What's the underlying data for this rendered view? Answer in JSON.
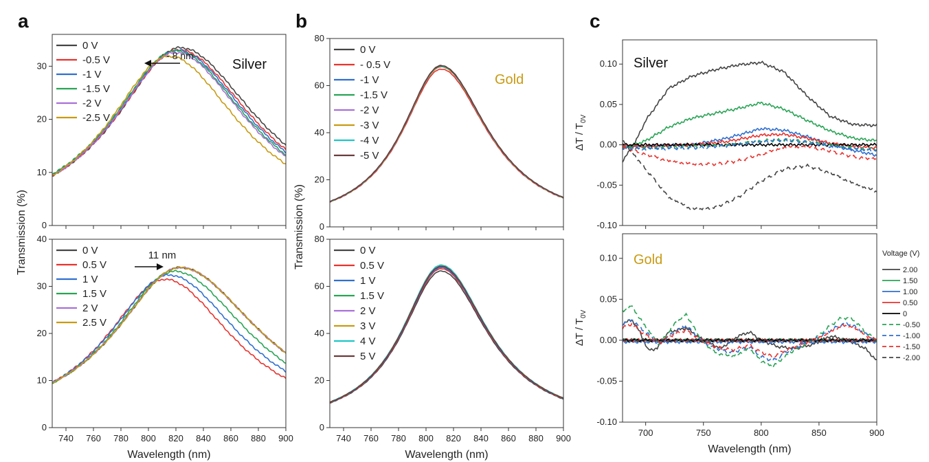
{
  "figure": {
    "panel_letters": [
      "a",
      "b",
      "c"
    ]
  },
  "chart_data": [
    {
      "id": "a_top",
      "panel": "a",
      "type": "line",
      "annotation": "Silver",
      "arrow_label": "- 8 nm",
      "xlim": [
        730,
        900
      ],
      "ylim": [
        0,
        36
      ],
      "xticks": [
        740,
        760,
        780,
        800,
        820,
        840,
        860,
        880,
        900
      ],
      "yticks": [
        0,
        10,
        20,
        30
      ],
      "xlabel": "",
      "ylabel": "Transmission (%)",
      "legend_placement": "top-left",
      "series": [
        {
          "name": "0 V",
          "color": "#444444",
          "peak": 823,
          "amp": 33.5,
          "wl": 58,
          "wr": 70
        },
        {
          "name": "-0.5 V",
          "color": "#e8322d",
          "peak": 822,
          "amp": 33.1,
          "wl": 58,
          "wr": 68
        },
        {
          "name": "-1 V",
          "color": "#2f6fd0",
          "peak": 821,
          "amp": 33.0,
          "wl": 58,
          "wr": 67
        },
        {
          "name": "-1.5 V",
          "color": "#27a454",
          "peak": 820,
          "amp": 32.9,
          "wl": 58,
          "wr": 66
        },
        {
          "name": "-2 V",
          "color": "#a870d8",
          "peak": 820,
          "amp": 32.6,
          "wl": 57,
          "wr": 65
        },
        {
          "name": "-2.5 V",
          "color": "#c89a12",
          "peak": 815,
          "amp": 31.9,
          "wl": 55,
          "wr": 64
        }
      ]
    },
    {
      "id": "a_bot",
      "panel": "a",
      "type": "line",
      "annotation": "",
      "arrow_label": "11 nm",
      "xlim": [
        730,
        900
      ],
      "ylim": [
        0,
        40
      ],
      "xticks": [
        740,
        760,
        780,
        800,
        820,
        840,
        860,
        880,
        900
      ],
      "yticks": [
        0,
        10,
        20,
        30,
        40
      ],
      "xlabel": "Wavelength (nm)",
      "ylabel": "",
      "legend_placement": "top-left",
      "series": [
        {
          "name": "0 V",
          "color": "#444444",
          "peak": 823,
          "amp": 34.0,
          "wl": 58,
          "wr": 72
        },
        {
          "name": "0.5 V",
          "color": "#e8322d",
          "peak": 812,
          "amp": 31.5,
          "wl": 54,
          "wr": 62
        },
        {
          "name": "1 V",
          "color": "#2f6fd0",
          "peak": 815,
          "amp": 32.4,
          "wl": 55,
          "wr": 65
        },
        {
          "name": "1.5 V",
          "color": "#27a454",
          "peak": 819,
          "amp": 33.2,
          "wl": 56,
          "wr": 68
        },
        {
          "name": "2 V",
          "color": "#a870d8",
          "peak": 823,
          "amp": 34.0,
          "wl": 58,
          "wr": 72
        },
        {
          "name": "2.5 V",
          "color": "#c89a12",
          "peak": 823,
          "amp": 34.0,
          "wl": 58,
          "wr": 72
        }
      ]
    },
    {
      "id": "b_top",
      "panel": "b",
      "type": "line",
      "annotation": "Gold",
      "arrow_label": "",
      "xlim": [
        730,
        900
      ],
      "ylim": [
        0,
        80
      ],
      "xticks": [
        740,
        760,
        780,
        800,
        820,
        840,
        860,
        880,
        900
      ],
      "yticks": [
        0,
        20,
        40,
        60,
        80
      ],
      "xlabel": "",
      "ylabel": "Transmission (%)",
      "legend_placement": "top-left",
      "series": [
        {
          "name": "0 V",
          "color": "#444444",
          "peak": 811,
          "amp": 68.5,
          "wl": 35,
          "wr": 42
        },
        {
          "name": "- 0.5 V",
          "color": "#e8322d",
          "peak": 811,
          "amp": 67.0,
          "wl": 35,
          "wr": 42
        },
        {
          "name": "-1 V",
          "color": "#2f6fd0",
          "peak": 811,
          "amp": 68.0,
          "wl": 35,
          "wr": 42
        },
        {
          "name": "-1.5 V",
          "color": "#27a454",
          "peak": 811,
          "amp": 68.0,
          "wl": 35,
          "wr": 42
        },
        {
          "name": "-2 V",
          "color": "#a870d8",
          "peak": 811,
          "amp": 68.0,
          "wl": 35,
          "wr": 42
        },
        {
          "name": "-3 V",
          "color": "#c89a12",
          "peak": 811,
          "amp": 68.0,
          "wl": 35,
          "wr": 42
        },
        {
          "name": "-4 V",
          "color": "#1ec6c6",
          "peak": 811,
          "amp": 68.2,
          "wl": 35,
          "wr": 42
        },
        {
          "name": "-5 V",
          "color": "#6b3a3a",
          "peak": 811,
          "amp": 68.4,
          "wl": 35,
          "wr": 42
        }
      ]
    },
    {
      "id": "b_bot",
      "panel": "b",
      "type": "line",
      "annotation": "",
      "arrow_label": "",
      "xlim": [
        730,
        900
      ],
      "ylim": [
        0,
        80
      ],
      "xticks": [
        740,
        760,
        780,
        800,
        820,
        840,
        860,
        880,
        900
      ],
      "yticks": [
        0,
        20,
        40,
        60,
        80
      ],
      "xlabel": "Wavelength (nm)",
      "ylabel": "",
      "legend_placement": "top-left",
      "series": [
        {
          "name": "0 V",
          "color": "#444444",
          "peak": 811,
          "amp": 66.5,
          "wl": 35,
          "wr": 42
        },
        {
          "name": "0.5 V",
          "color": "#e8322d",
          "peak": 811,
          "amp": 67.5,
          "wl": 35,
          "wr": 42
        },
        {
          "name": "1 V",
          "color": "#2f6fd0",
          "peak": 811,
          "amp": 68.0,
          "wl": 35,
          "wr": 42
        },
        {
          "name": "1.5 V",
          "color": "#27a454",
          "peak": 811,
          "amp": 68.5,
          "wl": 35,
          "wr": 42
        },
        {
          "name": "2 V",
          "color": "#a870d8",
          "peak": 811,
          "amp": 68.5,
          "wl": 35,
          "wr": 42
        },
        {
          "name": "3 V",
          "color": "#c89a12",
          "peak": 811,
          "amp": 69.0,
          "wl": 35,
          "wr": 42
        },
        {
          "name": "4 V",
          "color": "#1ec6c6",
          "peak": 811,
          "amp": 69.0,
          "wl": 35,
          "wr": 42
        },
        {
          "name": "5 V",
          "color": "#6b3a3a",
          "peak": 811,
          "amp": 68.5,
          "wl": 35,
          "wr": 42
        }
      ]
    },
    {
      "id": "c_top",
      "panel": "c",
      "type": "line",
      "annotation": "Silver",
      "arrow_label": "",
      "xlim": [
        680,
        900
      ],
      "ylim": [
        -0.1,
        0.13
      ],
      "xticks": [
        700,
        750,
        800,
        850,
        900
      ],
      "yticks": [
        -0.1,
        -0.05,
        0.0,
        0.05,
        0.1
      ],
      "xlabel": "",
      "ylabel": "ΔT / T0V",
      "legend_placement": "outside-right",
      "legend_title": "Voltage (V)",
      "series": [
        {
          "name": "2.00",
          "color": "#444444",
          "dash": false,
          "x": [
            680,
            690,
            700,
            720,
            740,
            760,
            780,
            800,
            820,
            840,
            860,
            880,
            900
          ],
          "y": [
            -0.02,
            0.0,
            0.03,
            0.07,
            0.085,
            0.093,
            0.099,
            0.102,
            0.09,
            0.06,
            0.035,
            0.025,
            0.024
          ]
        },
        {
          "name": "1.50",
          "color": "#27a454",
          "dash": false,
          "x": [
            680,
            700,
            720,
            740,
            760,
            780,
            800,
            820,
            840,
            860,
            880,
            900
          ],
          "y": [
            -0.005,
            0.005,
            0.022,
            0.033,
            0.039,
            0.045,
            0.052,
            0.044,
            0.03,
            0.017,
            0.008,
            0.005
          ]
        },
        {
          "name": "1.00",
          "color": "#2f6fd0",
          "dash": false,
          "x": [
            680,
            700,
            740,
            770,
            800,
            820,
            840,
            860,
            880,
            900
          ],
          "y": [
            -0.002,
            -0.002,
            0.0,
            0.008,
            0.02,
            0.018,
            0.01,
            0.0,
            -0.007,
            -0.013
          ]
        },
        {
          "name": "0.50",
          "color": "#e8322d",
          "dash": false,
          "x": [
            680,
            700,
            740,
            770,
            800,
            820,
            840,
            860,
            880,
            900
          ],
          "y": [
            -0.001,
            -0.002,
            0.0,
            0.004,
            0.012,
            0.013,
            0.008,
            0.002,
            -0.002,
            -0.004
          ]
        },
        {
          "name": "0",
          "color": "#000000",
          "dash": false,
          "x": [
            680,
            900
          ],
          "y": [
            0.0,
            0.0
          ]
        },
        {
          "name": "-0.50",
          "color": "#27a454",
          "dash": true,
          "x": [
            680,
            700,
            740,
            770,
            800,
            820,
            840,
            860,
            880,
            900
          ],
          "y": [
            -0.003,
            -0.004,
            -0.002,
            0.0,
            0.005,
            0.006,
            0.004,
            0.0,
            -0.004,
            -0.006
          ]
        },
        {
          "name": "-1.00",
          "color": "#2f6fd0",
          "dash": true,
          "x": [
            680,
            700,
            740,
            770,
            800,
            820,
            840,
            860,
            880,
            900
          ],
          "y": [
            -0.004,
            -0.005,
            -0.004,
            -0.001,
            0.004,
            0.006,
            0.003,
            -0.002,
            -0.005,
            -0.007
          ]
        },
        {
          "name": "-1.50",
          "color": "#e8322d",
          "dash": true,
          "x": [
            680,
            700,
            720,
            740,
            760,
            780,
            800,
            820,
            840,
            860,
            880,
            900
          ],
          "y": [
            -0.003,
            -0.012,
            -0.02,
            -0.024,
            -0.024,
            -0.02,
            -0.012,
            -0.003,
            -0.002,
            -0.008,
            -0.015,
            -0.018
          ]
        },
        {
          "name": "-2.00",
          "color": "#444444",
          "dash": true,
          "x": [
            680,
            700,
            720,
            740,
            760,
            780,
            800,
            820,
            840,
            860,
            880,
            900
          ],
          "y": [
            0.005,
            -0.03,
            -0.065,
            -0.08,
            -0.078,
            -0.065,
            -0.045,
            -0.03,
            -0.026,
            -0.035,
            -0.048,
            -0.058
          ]
        }
      ]
    },
    {
      "id": "c_bot",
      "panel": "c",
      "type": "line",
      "annotation": "Gold",
      "arrow_label": "",
      "xlim": [
        680,
        900
      ],
      "ylim": [
        -0.1,
        0.13
      ],
      "xticks": [
        700,
        750,
        800,
        850,
        900
      ],
      "yticks": [
        -0.1,
        -0.05,
        0.0,
        0.05,
        0.1
      ],
      "xlabel": "Wavelength (nm)",
      "ylabel": "ΔT / T0V",
      "legend_placement": "none",
      "series": [
        {
          "name": "2.00",
          "color": "#444444",
          "dash": false,
          "x": [
            680,
            688,
            695,
            702,
            710,
            720,
            735,
            750,
            765,
            780,
            790,
            800,
            815,
            830,
            845,
            860,
            875,
            890,
            900
          ],
          "y": [
            0.02,
            0.025,
            0.01,
            -0.012,
            -0.01,
            0.01,
            0.015,
            0.0,
            -0.01,
            0.005,
            0.01,
            0.0,
            -0.008,
            -0.01,
            -0.005,
            0.005,
            0.0,
            -0.01,
            -0.025
          ]
        },
        {
          "name": "1.50",
          "color": "#27a454",
          "dash": false,
          "x": [
            680,
            900
          ],
          "y": [
            0.0,
            0.0
          ]
        },
        {
          "name": "1.00",
          "color": "#2f6fd0",
          "dash": false,
          "x": [
            680,
            900
          ],
          "y": [
            -0.002,
            -0.002
          ]
        },
        {
          "name": "0.50",
          "color": "#e8322d",
          "dash": false,
          "x": [
            680,
            900
          ],
          "y": [
            0.0,
            0.0
          ]
        },
        {
          "name": "0",
          "color": "#000000",
          "dash": false,
          "x": [
            680,
            900
          ],
          "y": [
            0.0,
            0.0
          ]
        },
        {
          "name": "-0.50",
          "color": "#27a454",
          "dash": true,
          "x": [
            680,
            688,
            698,
            712,
            725,
            735,
            748,
            760,
            775,
            790,
            800,
            810,
            825,
            845,
            860,
            870,
            880,
            890,
            900
          ],
          "y": [
            0.035,
            0.042,
            0.02,
            -0.005,
            0.02,
            0.032,
            0.0,
            -0.015,
            -0.02,
            -0.01,
            -0.025,
            -0.032,
            -0.015,
            0.0,
            0.018,
            0.028,
            0.025,
            0.01,
            0.0
          ]
        },
        {
          "name": "-1.00",
          "color": "#2f6fd0",
          "dash": true,
          "x": [
            680,
            688,
            698,
            712,
            725,
            735,
            748,
            760,
            775,
            790,
            800,
            810,
            825,
            845,
            860,
            870,
            880,
            890,
            900
          ],
          "y": [
            0.02,
            0.025,
            0.012,
            -0.004,
            0.01,
            0.018,
            0.0,
            -0.01,
            -0.015,
            -0.008,
            -0.02,
            -0.025,
            -0.012,
            0.0,
            0.012,
            0.02,
            0.018,
            0.008,
            0.0
          ]
        },
        {
          "name": "-1.50",
          "color": "#e8322d",
          "dash": true,
          "x": [
            680,
            688,
            698,
            712,
            725,
            735,
            748,
            760,
            775,
            790,
            800,
            810,
            825,
            845,
            860,
            870,
            880,
            890,
            900
          ],
          "y": [
            0.015,
            0.02,
            0.008,
            -0.003,
            0.008,
            0.012,
            0.0,
            -0.008,
            -0.012,
            -0.006,
            -0.015,
            -0.02,
            -0.01,
            0.0,
            0.01,
            0.018,
            0.016,
            0.006,
            0.0
          ]
        },
        {
          "name": "-2.00",
          "color": "#444444",
          "dash": true,
          "x": [
            680,
            900
          ],
          "y": [
            0.0,
            0.0
          ]
        }
      ]
    }
  ]
}
